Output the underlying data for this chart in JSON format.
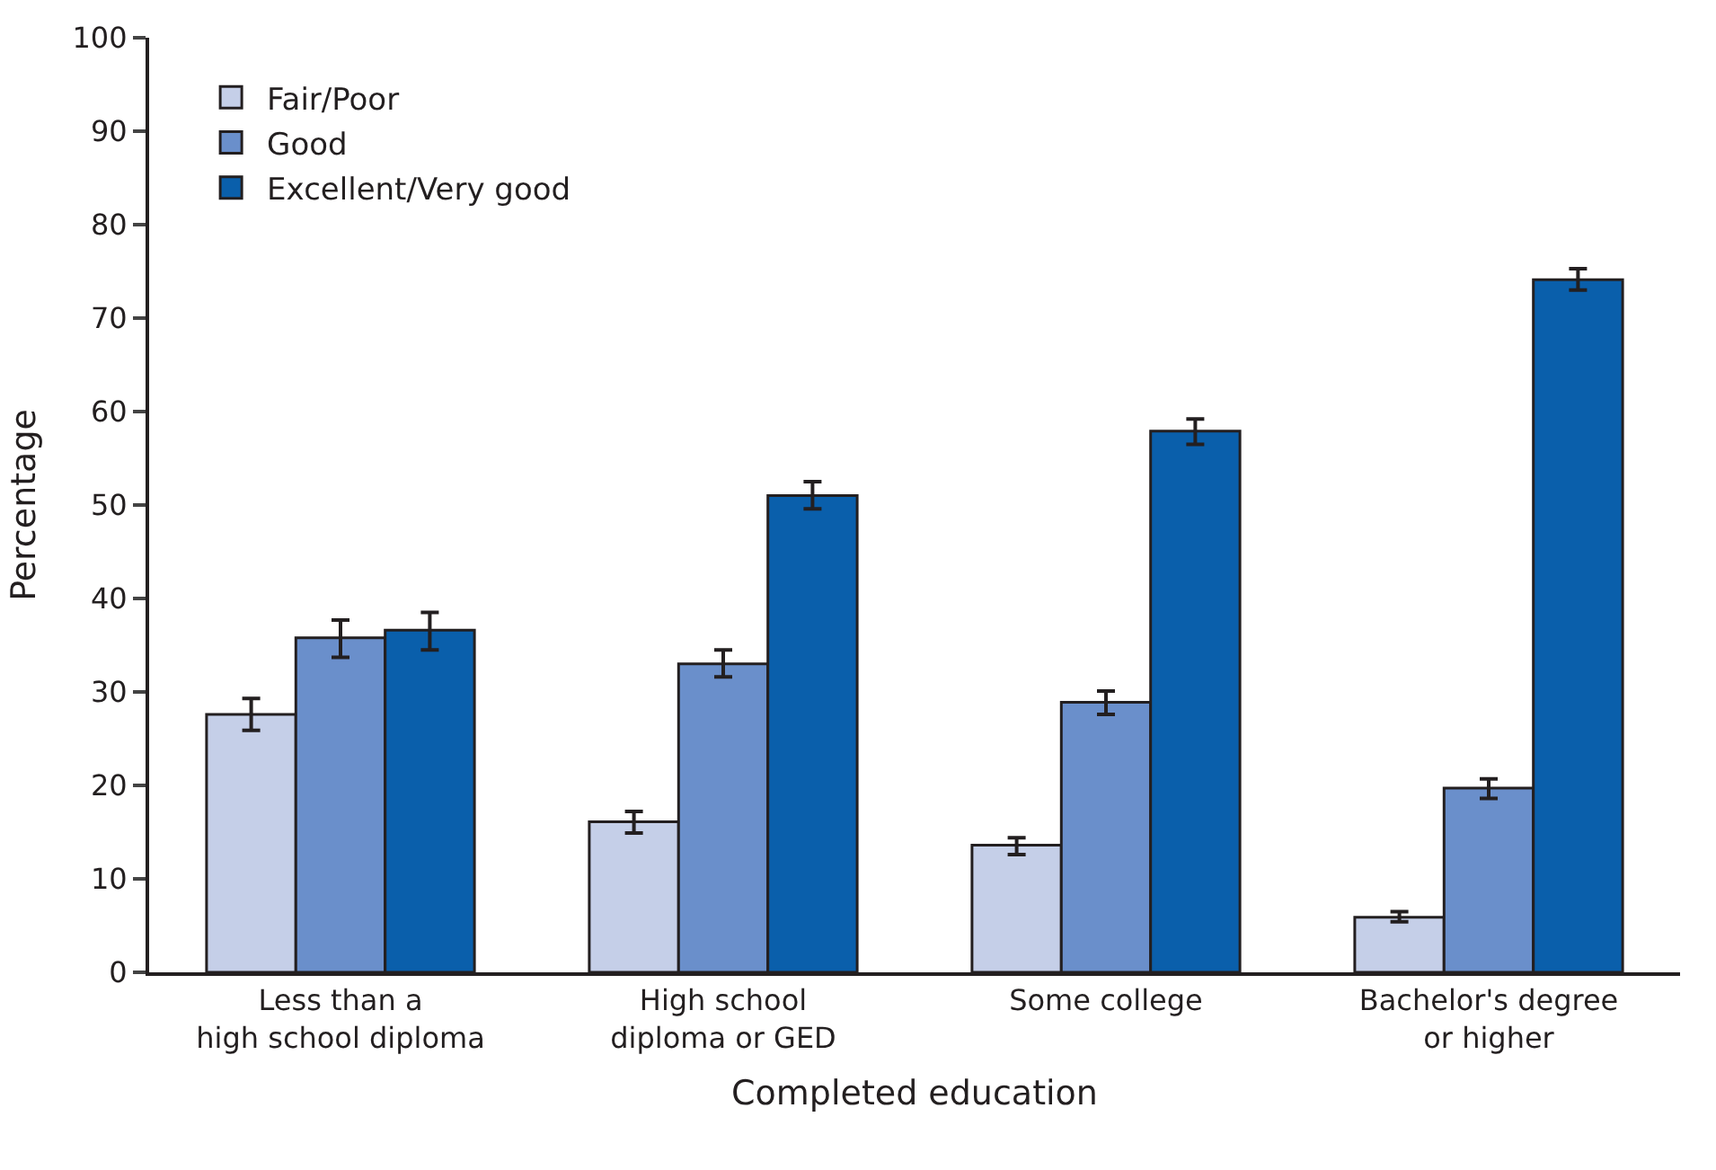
{
  "chart_data": {
    "type": "bar",
    "xlabel": "Completed education",
    "ylabel": "Percentage",
    "categories": [
      "Less than a\nhigh school diploma",
      "High school\ndiploma or GED",
      "Some college",
      "Bachelor's degree\nor higher"
    ],
    "series": [
      {
        "name": "Fair/Poor",
        "color": "#c5cfe8",
        "values": [
          27.6,
          16.1,
          13.6,
          5.9
        ],
        "errors": [
          [
            25.9,
            29.3
          ],
          [
            14.9,
            17.2
          ],
          [
            12.6,
            14.4
          ],
          [
            5.4,
            6.5
          ]
        ]
      },
      {
        "name": "Good",
        "color": "#6a8fcb",
        "values": [
          35.8,
          33.0,
          28.9,
          19.7
        ],
        "errors": [
          [
            33.7,
            37.7
          ],
          [
            31.6,
            34.5
          ],
          [
            27.6,
            30.1
          ],
          [
            18.6,
            20.7
          ]
        ]
      },
      {
        "name": "Excellent/Very good",
        "color": "#0a5fab",
        "values": [
          36.6,
          51.0,
          57.9,
          74.1
        ],
        "errors": [
          [
            34.5,
            38.5
          ],
          [
            49.6,
            52.5
          ],
          [
            56.5,
            59.2
          ],
          [
            73.0,
            75.3
          ]
        ]
      }
    ],
    "ylim": [
      0,
      100
    ],
    "yticks": [
      0,
      10,
      20,
      30,
      40,
      50,
      60,
      70,
      80,
      90,
      100
    ],
    "legend": "top left"
  }
}
